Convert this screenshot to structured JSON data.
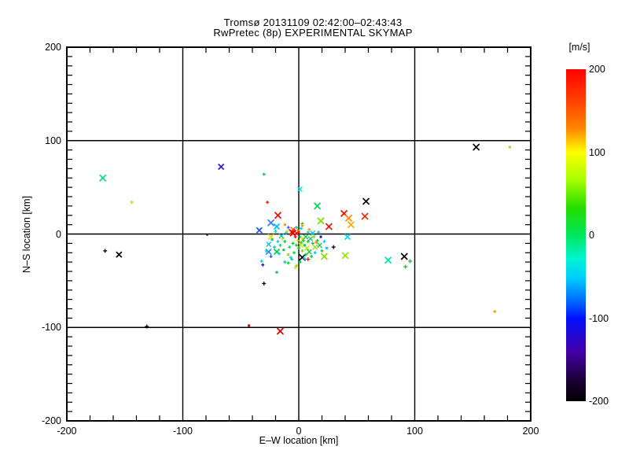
{
  "chart_data": {
    "type": "scatter",
    "title_line1": "Tromsø 20131109 02:42:00–02:43:43",
    "title_line2": "RwPretec (8p) EXPERIMENTAL SKYMAP",
    "xlabel": "E–W location [km]",
    "ylabel": "N–S location [km]",
    "xlim": [
      -200,
      200
    ],
    "ylim": [
      -200,
      200
    ],
    "x_major_ticks": [
      -200,
      -100,
      0,
      100,
      200
    ],
    "y_major_ticks": [
      -200,
      -100,
      0,
      100,
      200
    ],
    "x_minor_step": 20,
    "y_minor_step": 10,
    "grid": "major gridlines at -100, 0, 100 on both axes",
    "legend_position": "none",
    "colorbar": {
      "title": "[m/s]",
      "ticks": [
        200,
        100,
        0,
        -100,
        -200
      ],
      "min": -200,
      "max": 200,
      "gradient": [
        [
          "0%",
          "#ff0000"
        ],
        [
          "10%",
          "#ff4400"
        ],
        [
          "18%",
          "#ff8800"
        ],
        [
          "25%",
          "#ffff00"
        ],
        [
          "33%",
          "#aaff00"
        ],
        [
          "42%",
          "#22dd00"
        ],
        [
          "50%",
          "#00e65c"
        ],
        [
          "57%",
          "#00f5d0"
        ],
        [
          "63%",
          "#00ccff"
        ],
        [
          "70%",
          "#0066ff"
        ],
        [
          "75%",
          "#0011ff"
        ],
        [
          "85%",
          "#4400aa"
        ],
        [
          "94%",
          "#1a0033"
        ],
        [
          "100%",
          "#000000"
        ]
      ]
    },
    "marker_types": {
      "x": "diagonal-cross",
      "+": "plus",
      ".": "dot"
    },
    "point_format": [
      "ew_km",
      "ns_km",
      "color",
      "marker",
      "size_px"
    ],
    "points": [
      [
        -169,
        60,
        "#00e08c",
        "x",
        8
      ],
      [
        -144,
        34,
        "#cde000",
        "+",
        5
      ],
      [
        -67,
        72,
        "#3a16c8",
        "x",
        7
      ],
      [
        -167,
        -18,
        "#000000",
        "+",
        5
      ],
      [
        -155,
        -22,
        "#000000",
        "x",
        7
      ],
      [
        -79,
        -1,
        "#000000",
        ".",
        2
      ],
      [
        -131,
        -99,
        "#000000",
        "+",
        5
      ],
      [
        -30,
        -53,
        "#000000",
        "+",
        5
      ],
      [
        -43,
        -98,
        "#dd0000",
        ".",
        3
      ],
      [
        -16,
        -104,
        "#dd0000",
        "x",
        8
      ],
      [
        153,
        93,
        "#000000",
        "x",
        8
      ],
      [
        182,
        93,
        "#a8e000",
        ".",
        3
      ],
      [
        77,
        -28,
        "#00e0b0",
        "x",
        8
      ],
      [
        91,
        -24,
        "#000000",
        "x",
        8
      ],
      [
        96,
        -29,
        "#00cc22",
        "+",
        5
      ],
      [
        92,
        -35,
        "#00cc22",
        "+",
        5
      ],
      [
        169,
        -83,
        "#ff9900",
        ".",
        3
      ],
      [
        58,
        35,
        "#000000",
        "x",
        8
      ],
      [
        39,
        22,
        "#ee1100",
        "x",
        8
      ],
      [
        57,
        19,
        "#ee2200",
        "x",
        8
      ],
      [
        43,
        17,
        "#ff8800",
        "x",
        8
      ],
      [
        45,
        10,
        "#ffaa00",
        "x",
        8
      ],
      [
        26,
        8,
        "#ee1100",
        "x",
        8
      ],
      [
        19,
        14,
        "#7ddc00",
        "x",
        8
      ],
      [
        16,
        30,
        "#00d455",
        "x",
        8
      ],
      [
        -18,
        20,
        "#ee1100",
        "x",
        8
      ],
      [
        -24,
        12,
        "#2e7fff",
        "x",
        8
      ],
      [
        -19,
        8,
        "#00bbee",
        "x",
        7
      ],
      [
        30,
        -14,
        "#000000",
        "+",
        5
      ],
      [
        40,
        -23,
        "#9de000",
        "x",
        8
      ],
      [
        22,
        -24,
        "#8fdc00",
        "x",
        8
      ],
      [
        3,
        -25,
        "#000000",
        "x",
        8
      ],
      [
        8,
        -27,
        "#ee1100",
        "+",
        5
      ],
      [
        -30,
        64,
        "#00cc33",
        "+",
        4
      ],
      [
        1,
        48,
        "#00d8d8",
        "x",
        6
      ],
      [
        -34,
        4,
        "#2255ee",
        "x",
        7
      ],
      [
        -24,
        -3,
        "#e8e000",
        "x",
        7
      ],
      [
        -26,
        -19,
        "#2e7fff",
        "x",
        7
      ],
      [
        -31,
        -33,
        "#2a10b0",
        "+",
        4
      ],
      [
        -19,
        -19,
        "#00cc33",
        "x",
        7
      ],
      [
        42,
        -3,
        "#00d8e8",
        "x",
        7
      ],
      [
        -3,
        -36,
        "#e0e000",
        "+",
        4
      ],
      [
        -27,
        34,
        "#ee1100",
        "+",
        4
      ],
      [
        3,
        11,
        "#00cc33",
        "+",
        4
      ],
      [
        3,
        9,
        "#ff9900",
        "+",
        4
      ],
      [
        -7,
        -25,
        "#00d8e8",
        "+",
        4
      ],
      [
        -9,
        -31,
        "#00cc33",
        "+",
        4
      ],
      [
        -2,
        -34,
        "#8fdc00",
        "+",
        4
      ],
      [
        -12,
        -30,
        "#00c8a8",
        "+",
        4
      ],
      [
        -32,
        -29,
        "#00c8e8",
        "+",
        4
      ],
      [
        -19,
        -41,
        "#00cc33",
        "+",
        4
      ],
      [
        -6,
        2,
        "#ee0000",
        "x",
        7
      ],
      [
        -4,
        4,
        "#ee0000",
        "+",
        4
      ],
      [
        -2,
        1,
        "#ee1100",
        "x",
        6
      ],
      [
        -7,
        -1,
        "#ff8800",
        "+",
        4
      ],
      [
        -1,
        4,
        "#ff9900",
        "+",
        4
      ],
      [
        -3,
        -3,
        "#ee0000",
        "+",
        4
      ],
      [
        0,
        2,
        "#ee2200",
        ".",
        3
      ],
      [
        -5,
        5,
        "#ff5500",
        "x",
        6
      ],
      [
        -5,
        1,
        "#dd0000",
        "x",
        7
      ],
      [
        -1,
        -7,
        "#e8e000",
        "+",
        4
      ],
      [
        3,
        -5,
        "#e8e000",
        "+",
        4
      ],
      [
        -10,
        3,
        "#e0e000",
        "+",
        4
      ],
      [
        2,
        -12,
        "#e8e000",
        "x",
        6
      ],
      [
        7,
        -15,
        "#bbe000",
        "x",
        6
      ],
      [
        -14,
        -5,
        "#e8e000",
        "+",
        4
      ],
      [
        1,
        -3,
        "#00cc33",
        "+",
        4
      ],
      [
        4,
        -7,
        "#00cc33",
        "+",
        4
      ],
      [
        6,
        -3,
        "#00cc33",
        "x",
        6
      ],
      [
        2,
        -9,
        "#22cc22",
        "+",
        4
      ],
      [
        -2,
        -12,
        "#00cc33",
        "+",
        4
      ],
      [
        5,
        -12,
        "#00cc44",
        ".",
        3
      ],
      [
        8,
        -8,
        "#00cc33",
        "+",
        4
      ],
      [
        10,
        -5,
        "#00d455",
        "x",
        6
      ],
      [
        0,
        -15,
        "#00cc33",
        "+",
        4
      ],
      [
        -5,
        -10,
        "#00cc33",
        "+",
        4
      ],
      [
        -8,
        -14,
        "#00d47a",
        "+",
        4
      ],
      [
        12,
        -10,
        "#00cc33",
        "+",
        4
      ],
      [
        3,
        -18,
        "#7ddc00",
        "+",
        4
      ],
      [
        -4,
        -20,
        "#00cc33",
        "+",
        4
      ],
      [
        9,
        -19,
        "#00cc33",
        "x",
        6
      ],
      [
        14,
        -14,
        "#9de000",
        "x",
        6
      ],
      [
        -12,
        -8,
        "#00cc33",
        "+",
        4
      ],
      [
        -16,
        -12,
        "#00d47a",
        "+",
        4
      ],
      [
        6,
        -22,
        "#00cc33",
        "+",
        4
      ],
      [
        -9,
        -22,
        "#8fdc00",
        ".",
        3
      ],
      [
        16,
        -7,
        "#00cc33",
        "+",
        4
      ],
      [
        18,
        -12,
        "#00d455",
        "x",
        6
      ],
      [
        -13,
        -17,
        "#00cc44",
        ".",
        3
      ],
      [
        11,
        -24,
        "#00cc33",
        "+",
        4
      ],
      [
        -6,
        -27,
        "#00d47a",
        "+",
        4
      ],
      [
        1,
        -30,
        "#00cc44",
        ".",
        3
      ],
      [
        13,
        -3,
        "#7ddc00",
        "+",
        4
      ],
      [
        20,
        -18,
        "#00cc33",
        "+",
        4
      ],
      [
        -11,
        1,
        "#00c8e8",
        "+",
        4
      ],
      [
        -15,
        -2,
        "#00c8b0",
        "x",
        6
      ],
      [
        2,
        6,
        "#00c8e8",
        "+",
        4
      ],
      [
        -18,
        -8,
        "#00c8e8",
        "+",
        4
      ],
      [
        -21,
        -14,
        "#00c8a8",
        "+",
        4
      ],
      [
        8,
        2,
        "#00c8e8",
        "+",
        4
      ],
      [
        -2,
        7,
        "#00c8b0",
        "+",
        4
      ],
      [
        12,
        1,
        "#00c0e8",
        "x",
        6
      ],
      [
        -17,
        -21,
        "#00c8e8",
        "+",
        4
      ],
      [
        -23,
        -6,
        "#00c8a8",
        ".",
        3
      ],
      [
        5,
        -26,
        "#00c8e8",
        "+",
        4
      ],
      [
        22,
        -8,
        "#00c8e8",
        "+",
        4
      ],
      [
        17,
        2,
        "#00c8b0",
        "+",
        4
      ],
      [
        -26,
        -11,
        "#00b8e8",
        "x",
        6
      ],
      [
        -20,
        3,
        "#00d8a0",
        "+",
        4
      ],
      [
        24,
        -15,
        "#00c8e8",
        ".",
        3
      ],
      [
        -28,
        -18,
        "#00c8b0",
        "+",
        4
      ],
      [
        14,
        -20,
        "#00c8e8",
        "+",
        4
      ],
      [
        -9,
        7,
        "#2266ee",
        "+",
        4
      ],
      [
        19,
        -3,
        "#2a10b0",
        ".",
        3
      ],
      [
        -24,
        -24,
        "#2255ee",
        "+",
        4
      ],
      [
        9,
        5,
        "#ff9900",
        "+",
        4
      ],
      [
        -12,
        10,
        "#ff9900",
        ".",
        3
      ],
      [
        15,
        -9,
        "#ff8800",
        "+",
        4
      ]
    ]
  }
}
